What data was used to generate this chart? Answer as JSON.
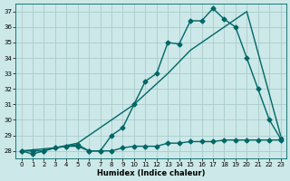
{
  "xlabel": "Humidex (Indice chaleur)",
  "bg_color": "#cce8e8",
  "grid_color": "#aacccc",
  "line_color": "#006666",
  "xlim": [
    -0.5,
    23.5
  ],
  "ylim": [
    27.5,
    37.5
  ],
  "yticks": [
    28,
    29,
    30,
    31,
    32,
    33,
    34,
    35,
    36,
    37
  ],
  "xticks": [
    0,
    1,
    2,
    3,
    4,
    5,
    6,
    7,
    8,
    9,
    10,
    11,
    12,
    13,
    14,
    15,
    16,
    17,
    18,
    19,
    20,
    21,
    22,
    23
  ],
  "series1_x": [
    0,
    1,
    2,
    3,
    4,
    5,
    6,
    7,
    8,
    9,
    10,
    11,
    12,
    13,
    14,
    15,
    16,
    17,
    18,
    19,
    20,
    21,
    22,
    23
  ],
  "series1_y": [
    28.0,
    27.8,
    28.0,
    28.2,
    28.3,
    28.3,
    28.0,
    28.0,
    29.0,
    29.5,
    31.0,
    32.5,
    33.0,
    35.0,
    34.9,
    36.4,
    36.4,
    37.2,
    36.5,
    36.0,
    34.0,
    32.0,
    30.0,
    28.8
  ],
  "series2_x": [
    0,
    1,
    2,
    3,
    4,
    5,
    6,
    7,
    8,
    9,
    10,
    11,
    12,
    13,
    14,
    15,
    16,
    17,
    18,
    19,
    20,
    21,
    22,
    23
  ],
  "series2_y": [
    28.0,
    28.0,
    28.0,
    28.2,
    28.3,
    28.4,
    28.0,
    28.0,
    28.0,
    28.2,
    28.3,
    28.3,
    28.3,
    28.5,
    28.5,
    28.6,
    28.6,
    28.6,
    28.7,
    28.7,
    28.7,
    28.7,
    28.7,
    28.7
  ],
  "series3_x": [
    0,
    3,
    5,
    10,
    13,
    15,
    17,
    19,
    20,
    23
  ],
  "series3_y": [
    28.0,
    28.2,
    28.5,
    31.0,
    33.0,
    34.5,
    35.5,
    36.5,
    37.0,
    29.0
  ],
  "marker": "D",
  "markersize": 2.5,
  "linewidth": 1.0
}
